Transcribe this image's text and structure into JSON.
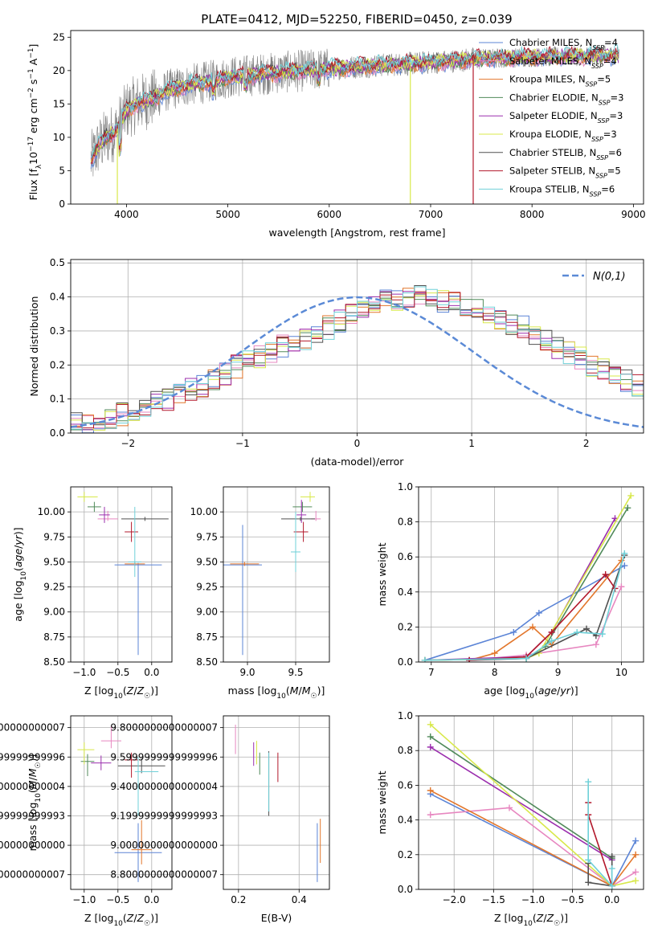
{
  "figure_title": "PLATE=0412, MJD=52250, FIBERID=0450, z=0.039",
  "series_colors": [
    "#5b84d6",
    "#e787c0",
    "#e2762b",
    "#508a5a",
    "#9b2fae",
    "#d8e84a",
    "#505050",
    "#b2182b",
    "#6fd0d8"
  ],
  "model_labels": [
    "Chabrier MILES",
    "Salpeter MILES",
    "Kroupa MILES",
    "Chabrier ELODIE",
    "Salpeter ELODIE",
    "Kroupa ELODIE",
    "Chabrier STELIB",
    "Salpeter STELIB",
    "Kroupa STELIB"
  ],
  "chart_data": [
    {
      "id": "spectrum",
      "type": "line",
      "xlabel": "wavelength [Angstrom, rest frame]",
      "ylabel": "Flux [f_λ 10^-17 erg cm^-2 s^-1 A^-1]",
      "xlim": [
        3450,
        9100
      ],
      "ylim": [
        0,
        26
      ],
      "xticks": [
        4000,
        5000,
        6000,
        7000,
        8000,
        9000
      ],
      "yticks": [
        0,
        5,
        10,
        15,
        20,
        25
      ],
      "legend_loc": "right",
      "legend": [
        {
          "label": "Chabrier MILES",
          "nssp": "4"
        },
        {
          "label": "Salpeter MILES",
          "nssp": "4"
        },
        {
          "label": "Kroupa MILES",
          "nssp": "5"
        },
        {
          "label": "Chabrier ELODIE",
          "nssp": "3"
        },
        {
          "label": "Salpeter ELODIE",
          "nssp": "3"
        },
        {
          "label": "Kroupa ELODIE",
          "nssp": "3"
        },
        {
          "label": "Chabrier STELIB",
          "nssp": "6"
        },
        {
          "label": "Salpeter STELIB",
          "nssp": "5"
        },
        {
          "label": "Kroupa STELIB",
          "nssp": "6"
        }
      ],
      "nssp_prefix": "N",
      "nssp_sub": "SSP",
      "continuum": {
        "x": [
          3650,
          3720,
          3800,
          3900,
          4000,
          4100,
          4200,
          4300,
          4400,
          4600,
          4800,
          5000,
          5500,
          6000,
          6500,
          7000,
          7500,
          8000,
          8500,
          8850
        ],
        "y": [
          6.5,
          8.5,
          10.0,
          11.0,
          14.0,
          15.0,
          15.5,
          16.0,
          17.0,
          17.8,
          18.3,
          19.0,
          19.7,
          20.3,
          20.8,
          21.2,
          21.8,
          22.0,
          22.2,
          22.3
        ]
      },
      "dropouts": [
        {
          "model": "Salpeter STELIB",
          "x": 7420
        },
        {
          "model": "Kroupa ELODIE",
          "x": 3910
        },
        {
          "model": "Kroupa ELODIE",
          "x": 6800
        }
      ]
    },
    {
      "id": "residuals",
      "type": "step",
      "xlabel": "(data-model)/error",
      "ylabel": "Normed distribution",
      "xlim": [
        -2.5,
        2.5
      ],
      "ylim": [
        0,
        0.51
      ],
      "xticks": [
        -2,
        -1,
        0,
        1,
        2
      ],
      "yticks": [
        0.0,
        0.1,
        0.2,
        0.3,
        0.4,
        0.5
      ],
      "legend_label": "N(0,1)",
      "bin_width": 0.1,
      "bin_start": -2.5,
      "envelope": [
        0.03,
        0.035,
        0.04,
        0.045,
        0.055,
        0.07,
        0.08,
        0.09,
        0.1,
        0.115,
        0.13,
        0.14,
        0.16,
        0.175,
        0.195,
        0.21,
        0.225,
        0.24,
        0.255,
        0.27,
        0.28,
        0.3,
        0.31,
        0.33,
        0.345,
        0.36,
        0.38,
        0.39,
        0.39,
        0.4,
        0.4,
        0.4,
        0.39,
        0.38,
        0.37,
        0.36,
        0.35,
        0.34,
        0.32,
        0.31,
        0.29,
        0.27,
        0.25,
        0.235,
        0.22,
        0.2,
        0.185,
        0.17,
        0.155,
        0.14,
        0.125,
        0.11,
        0.095,
        0.085,
        0.075,
        0.065,
        0.055,
        0.05,
        0.045,
        0.04,
        0.035,
        0.03
      ]
    },
    {
      "id": "age-vs-Z",
      "type": "scatter",
      "xlabel": "Z [log10(Z/Z☉)]",
      "ylabel": "age [log10(age/yr)]",
      "xlim": [
        -1.2,
        0.3
      ],
      "ylim": [
        8.5,
        10.25
      ],
      "xticks": [
        -1.0,
        -0.5,
        0.0
      ],
      "yticks": [
        8.5,
        8.75,
        9.0,
        9.25,
        9.5,
        9.75,
        10.0
      ],
      "points": [
        {
          "x": -0.2,
          "y": 9.47,
          "xerr": [
            0.35,
            0.35
          ],
          "yerr": [
            0.9,
            0.02
          ]
        },
        {
          "x": -0.65,
          "y": 9.93,
          "xerr": [
            0.15,
            0.15
          ],
          "yerr": [
            0.02,
            0.08
          ]
        },
        {
          "x": -0.25,
          "y": 9.48,
          "xerr": [
            0.15,
            0.15
          ],
          "yerr": [
            0.02,
            0.02
          ]
        },
        {
          "x": -0.85,
          "y": 10.05,
          "xerr": [
            0.1,
            0.1
          ],
          "yerr": [
            0.05,
            0.05
          ]
        },
        {
          "x": -0.7,
          "y": 9.97,
          "xerr": [
            0.08,
            0.08
          ],
          "yerr": [
            0.08,
            0.08
          ]
        },
        {
          "x": -1.0,
          "y": 10.15,
          "xerr": [
            0.1,
            0.2
          ],
          "yerr": [
            0.05,
            0.05
          ]
        },
        {
          "x": -0.1,
          "y": 9.93,
          "xerr": [
            0.35,
            0.35
          ],
          "yerr": [
            0.02,
            0.02
          ]
        },
        {
          "x": -0.3,
          "y": 9.8,
          "xerr": [
            0.1,
            0.1
          ],
          "yerr": [
            0.1,
            0.1
          ]
        },
        {
          "x": -0.25,
          "y": 9.5,
          "xerr": [
            0.1,
            0.1
          ],
          "yerr": [
            0.15,
            0.55
          ]
        }
      ]
    },
    {
      "id": "age-vs-mass",
      "type": "scatter",
      "xlabel": "mass [log10(M/M☉)]",
      "ylabel": "",
      "xlim": [
        8.75,
        9.85
      ],
      "ylim": [
        8.5,
        10.25
      ],
      "xticks": [
        9.0,
        9.5
      ],
      "yticks": [
        8.5,
        8.75,
        9.0,
        9.25,
        9.5,
        9.75,
        10.0
      ],
      "points": [
        {
          "x": 8.95,
          "y": 9.47,
          "xerr": [
            0.2,
            0.2
          ],
          "yerr": [
            0.9,
            0.4
          ]
        },
        {
          "x": 9.71,
          "y": 9.93,
          "xerr": [
            0.05,
            0.05
          ],
          "yerr": [
            0.02,
            0.08
          ]
        },
        {
          "x": 8.97,
          "y": 9.48,
          "xerr": [
            0.15,
            0.15
          ],
          "yerr": [
            0.02,
            0.02
          ]
        },
        {
          "x": 9.57,
          "y": 10.05,
          "xerr": [
            0.1,
            0.1
          ],
          "yerr": [
            0.05,
            0.05
          ]
        },
        {
          "x": 9.56,
          "y": 9.97,
          "xerr": [
            0.05,
            0.05
          ],
          "yerr": [
            0.08,
            0.15
          ]
        },
        {
          "x": 9.65,
          "y": 10.15,
          "xerr": [
            0.1,
            0.05
          ],
          "yerr": [
            0.05,
            0.05
          ]
        },
        {
          "x": 9.55,
          "y": 9.93,
          "xerr": [
            0.2,
            0.15
          ],
          "yerr": [
            0.02,
            0.02
          ]
        },
        {
          "x": 9.58,
          "y": 9.8,
          "xerr": [
            0.1,
            0.05
          ],
          "yerr": [
            0.1,
            0.1
          ]
        },
        {
          "x": 9.5,
          "y": 9.6,
          "xerr": [
            0.05,
            0.05
          ],
          "yerr": [
            0.2,
            0.4
          ]
        }
      ]
    },
    {
      "id": "mass-weight-vs-age",
      "type": "line",
      "xlabel": "age [log10(age/yr)]",
      "ylabel": "mass weight",
      "xlim": [
        6.8,
        10.35
      ],
      "ylim": [
        0,
        1.0
      ],
      "xticks": [
        7,
        8,
        9,
        10
      ],
      "yticks": [
        0.0,
        0.2,
        0.4,
        0.6,
        0.8,
        1.0
      ],
      "series": [
        {
          "x": [
            6.9,
            8.3,
            8.7,
            10.05
          ],
          "y": [
            0.01,
            0.17,
            0.28,
            0.55
          ]
        },
        {
          "x": [
            7.6,
            8.5,
            9.6,
            10.0
          ],
          "y": [
            0.01,
            0.04,
            0.1,
            0.43
          ]
        },
        {
          "x": [
            7.6,
            8.0,
            8.6,
            8.9,
            10.0
          ],
          "y": [
            0.01,
            0.05,
            0.2,
            0.1,
            0.58
          ]
        },
        {
          "x": [
            6.9,
            8.5,
            8.8,
            10.1
          ],
          "y": [
            0.01,
            0.02,
            0.09,
            0.88
          ]
        },
        {
          "x": [
            6.9,
            8.5,
            8.9,
            9.9
          ],
          "y": [
            0.01,
            0.03,
            0.17,
            0.82
          ]
        },
        {
          "x": [
            6.9,
            8.5,
            8.7,
            10.15
          ],
          "y": [
            0.01,
            0.02,
            0.05,
            0.95
          ]
        },
        {
          "x": [
            7.6,
            8.5,
            9.45,
            9.6,
            10.05
          ],
          "y": [
            0.01,
            0.02,
            0.19,
            0.15,
            0.61
          ]
        },
        {
          "x": [
            7.6,
            8.5,
            8.9,
            9.75,
            9.9
          ],
          "y": [
            0.01,
            0.03,
            0.17,
            0.5,
            0.42
          ]
        },
        {
          "x": [
            6.9,
            8.5,
            8.9,
            9.3,
            9.7,
            10.05
          ],
          "y": [
            0.01,
            0.02,
            0.12,
            0.17,
            0.16,
            0.62
          ]
        }
      ]
    },
    {
      "id": "mass-vs-Z",
      "type": "scatter",
      "xlabel": "Z [log10(Z/Z☉)]",
      "ylabel": "mass [log10(M/M☉)]",
      "xlim": [
        -1.2,
        0.3
      ],
      "ylim": [
        8.7,
        9.88
      ],
      "xticks": [
        -1.0,
        -0.5,
        0.0
      ],
      "yticks": [
        8.8,
        9.0,
        9.2,
        9.4,
        9.6,
        9.8
      ],
      "points": [
        {
          "x": -0.2,
          "y": 8.95,
          "xerr": [
            0.35,
            0.35
          ],
          "yerr": [
            0.2,
            0.2
          ]
        },
        {
          "x": -0.6,
          "y": 9.71,
          "xerr": [
            0.15,
            0.15
          ],
          "yerr": [
            0.05,
            0.1
          ]
        },
        {
          "x": -0.15,
          "y": 8.97,
          "xerr": [
            0.15,
            0.15
          ],
          "yerr": [
            0.1,
            0.2
          ]
        },
        {
          "x": -0.95,
          "y": 9.57,
          "xerr": [
            0.1,
            0.1
          ],
          "yerr": [
            0.1,
            0.05
          ]
        },
        {
          "x": -0.75,
          "y": 9.56,
          "xerr": [
            0.15,
            0.15
          ],
          "yerr": [
            0.05,
            0.05
          ]
        },
        {
          "x": -1.0,
          "y": 9.65,
          "xerr": [
            0.1,
            0.15
          ],
          "yerr": [
            0.1,
            0.05
          ]
        },
        {
          "x": -0.15,
          "y": 9.54,
          "xerr": [
            0.35,
            0.35
          ],
          "yerr": [
            0.05,
            0.05
          ]
        },
        {
          "x": -0.3,
          "y": 9.58,
          "xerr": [
            0.1,
            0.1
          ],
          "yerr": [
            0.12,
            0.05
          ]
        },
        {
          "x": -0.2,
          "y": 9.5,
          "xerr": [
            0.05,
            0.3
          ],
          "yerr": [
            0.3,
            0.1
          ]
        }
      ]
    },
    {
      "id": "mass-vs-EBV",
      "type": "scatter",
      "xlabel": "E(B-V)",
      "ylabel": "",
      "xlim": [
        0.15,
        0.5
      ],
      "ylim": [
        8.7,
        9.88
      ],
      "xticks": [
        0.2,
        0.4
      ],
      "yticks": [
        8.8,
        9.0,
        9.2,
        9.4,
        9.6,
        9.8
      ],
      "points": [
        {
          "x": 0.46,
          "y": 8.95,
          "xerr": [
            0,
            0
          ],
          "yerr": [
            0.2,
            0.2
          ]
        },
        {
          "x": 0.19,
          "y": 9.72,
          "xerr": [
            0,
            0
          ],
          "yerr": [
            0.1,
            0.1
          ]
        },
        {
          "x": 0.47,
          "y": 9.03,
          "xerr": [
            0,
            0
          ],
          "yerr": [
            0.15,
            0.15
          ]
        },
        {
          "x": 0.27,
          "y": 9.58,
          "xerr": [
            0,
            0
          ],
          "yerr": [
            0.1,
            0.05
          ]
        },
        {
          "x": 0.25,
          "y": 9.62,
          "xerr": [
            0,
            0
          ],
          "yerr": [
            0.08,
            0.08
          ]
        },
        {
          "x": 0.26,
          "y": 9.63,
          "xerr": [
            0,
            0
          ],
          "yerr": [
            0.08,
            0.08
          ]
        },
        {
          "x": 0.3,
          "y": 9.42,
          "xerr": [
            0,
            0
          ],
          "yerr": [
            0.22,
            0.22
          ]
        },
        {
          "x": 0.33,
          "y": 9.53,
          "xerr": [
            0,
            0
          ],
          "yerr": [
            0.1,
            0.1
          ]
        },
        {
          "x": 0.3,
          "y": 9.43,
          "xerr": [
            0,
            0
          ],
          "yerr": [
            0.2,
            0.2
          ]
        }
      ]
    },
    {
      "id": "mass-weight-vs-Z",
      "type": "line",
      "xlabel": "Z [log10(Z/Z☉)]",
      "ylabel": "mass weight",
      "xlim": [
        -2.45,
        0.4
      ],
      "ylim": [
        0,
        1.0
      ],
      "xticks": [
        -2.0,
        -1.5,
        -1.0,
        -0.5,
        0.0
      ],
      "yticks": [
        0.0,
        0.2,
        0.4,
        0.6,
        0.8,
        1.0
      ],
      "series": [
        {
          "x": [
            -2.3,
            0.0,
            0.3
          ],
          "y": [
            0.55,
            0.02,
            0.28
          ]
        },
        {
          "x": [
            -2.3,
            -1.3,
            0.0,
            0.3
          ],
          "y": [
            0.43,
            0.47,
            0.02,
            0.1
          ]
        },
        {
          "x": [
            -2.3,
            0.0,
            0.3
          ],
          "y": [
            0.57,
            0.02,
            0.2
          ]
        },
        {
          "x": [
            -2.3,
            0.0
          ],
          "y": [
            0.88,
            0.18
          ]
        },
        {
          "x": [
            -2.3,
            0.0
          ],
          "y": [
            0.82,
            0.17
          ]
        },
        {
          "x": [
            -2.3,
            0.0,
            0.3
          ],
          "y": [
            0.95,
            0.02,
            0.05
          ]
        },
        {
          "x": [
            -0.3,
            -0.3,
            0.0,
            0.0
          ],
          "y": [
            0.15,
            0.04,
            0.02,
            0.19
          ]
        },
        {
          "x": [
            -0.3,
            -0.3,
            0.0
          ],
          "y": [
            0.5,
            0.43,
            0.02
          ]
        },
        {
          "x": [
            -0.3,
            -0.3,
            0.0,
            0.0
          ],
          "y": [
            0.62,
            0.17,
            0.02,
            0.12
          ]
        }
      ]
    }
  ]
}
